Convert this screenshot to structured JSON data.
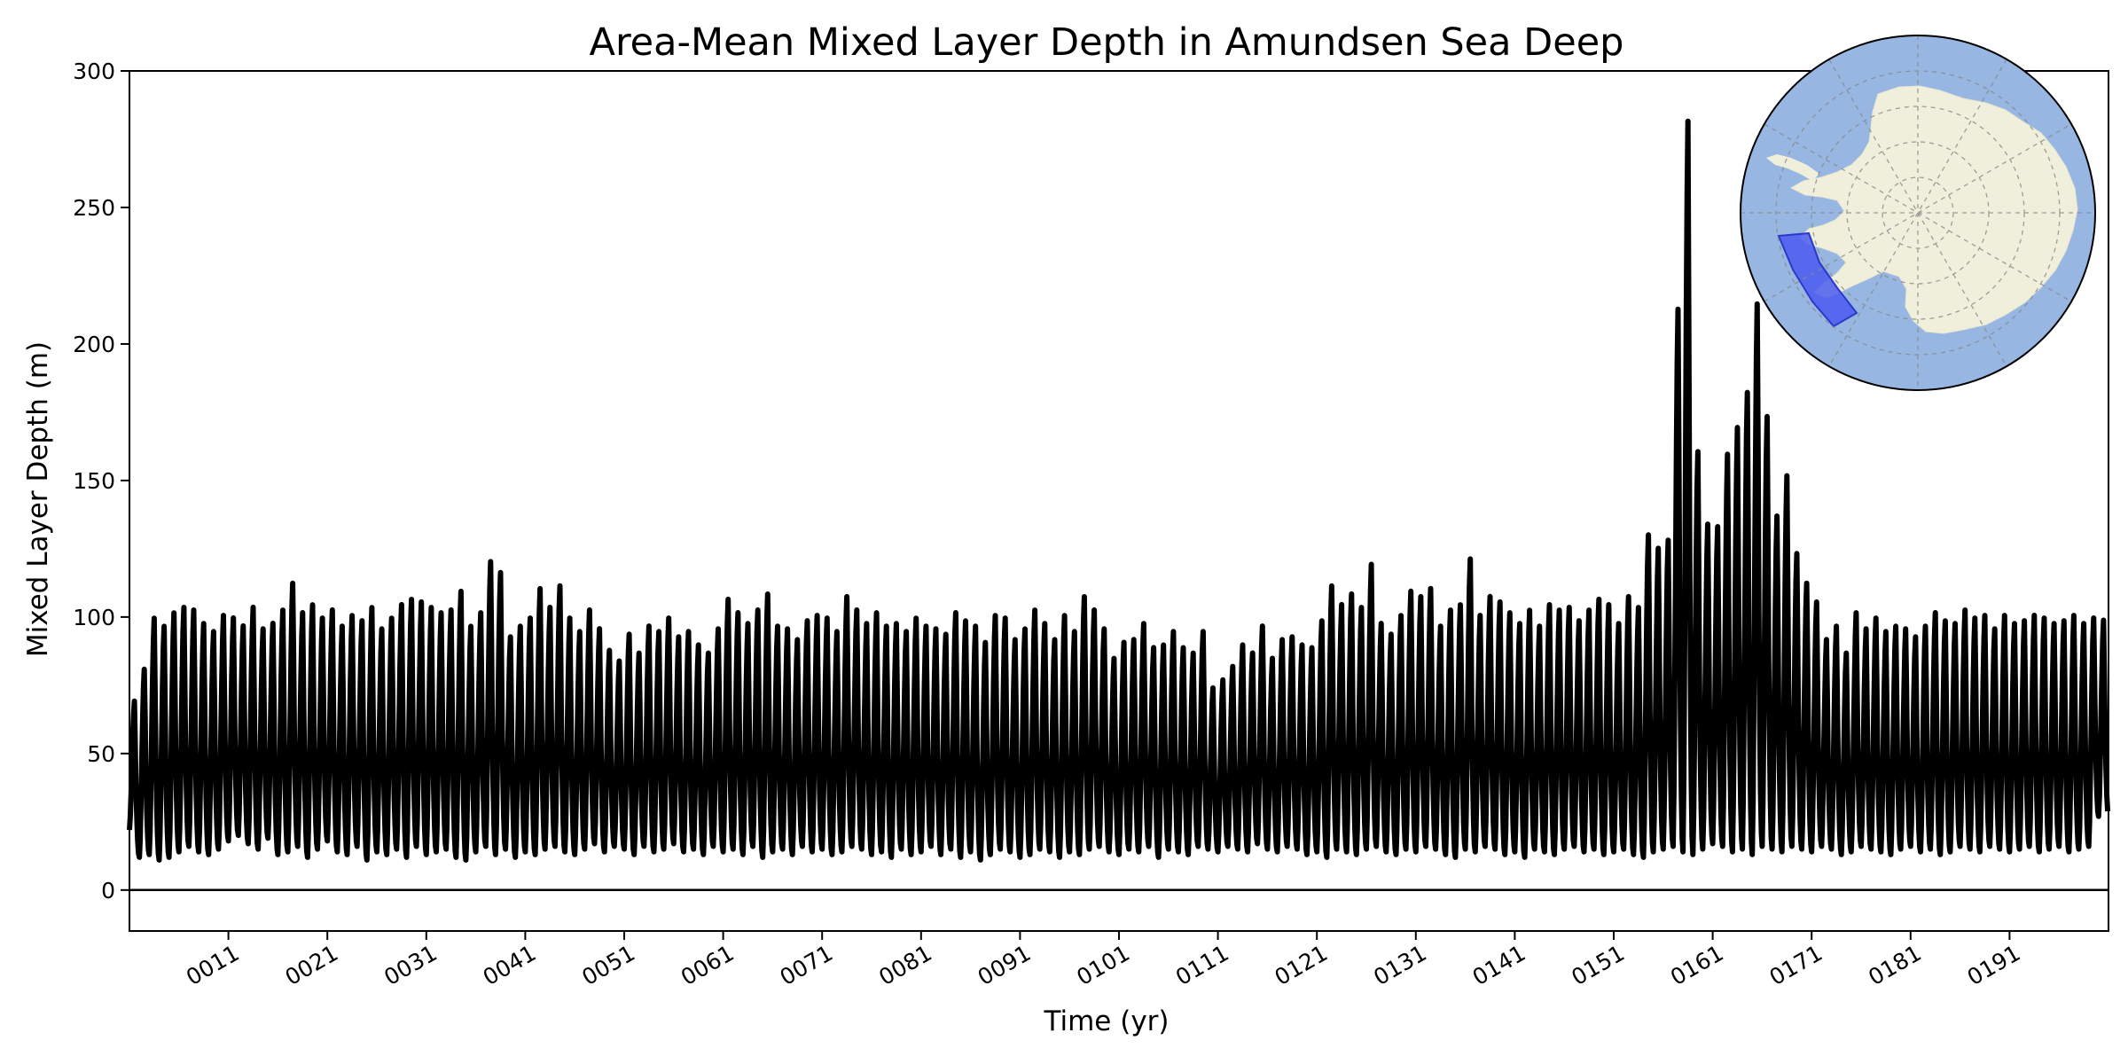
{
  "chart_data": {
    "type": "line",
    "title": "Area-Mean Mixed Layer Depth in Amundsen Sea Deep",
    "xlabel": "Time (yr)",
    "ylabel": "Mixed Layer Depth (m)",
    "xlim": [
      1,
      201
    ],
    "ylim": [
      -15,
      300
    ],
    "grid": false,
    "legend": "none",
    "line_color": "#000000",
    "x_ticks": [
      {
        "x": 11,
        "label": "0011"
      },
      {
        "x": 21,
        "label": "0021"
      },
      {
        "x": 31,
        "label": "0031"
      },
      {
        "x": 41,
        "label": "0041"
      },
      {
        "x": 51,
        "label": "0051"
      },
      {
        "x": 61,
        "label": "0061"
      },
      {
        "x": 71,
        "label": "0071"
      },
      {
        "x": 81,
        "label": "0081"
      },
      {
        "x": 91,
        "label": "0091"
      },
      {
        "x": 101,
        "label": "0101"
      },
      {
        "x": 111,
        "label": "0111"
      },
      {
        "x": 121,
        "label": "0121"
      },
      {
        "x": 131,
        "label": "0131"
      },
      {
        "x": 141,
        "label": "0141"
      },
      {
        "x": 151,
        "label": "0151"
      },
      {
        "x": 161,
        "label": "0161"
      },
      {
        "x": 171,
        "label": "0171"
      },
      {
        "x": 181,
        "label": "0181"
      },
      {
        "x": 191,
        "label": "0191"
      }
    ],
    "y_ticks": [
      {
        "y": 0,
        "label": "0"
      },
      {
        "y": 50,
        "label": "50"
      },
      {
        "y": 100,
        "label": "100"
      },
      {
        "y": 150,
        "label": "150"
      },
      {
        "y": 200,
        "label": "200"
      },
      {
        "y": 250,
        "label": "250"
      },
      {
        "y": 300,
        "label": "300"
      }
    ],
    "reference_line_y": 0,
    "series": [
      {
        "x_start": 1,
        "x_step": 1,
        "annual_max": [
          70,
          82,
          101,
          98,
          103,
          105,
          104,
          99,
          96,
          102,
          101,
          98,
          105,
          97,
          99,
          104,
          114,
          103,
          106,
          101,
          104,
          98,
          102,
          100,
          105,
          97,
          101,
          106,
          108,
          107,
          105,
          103,
          104,
          111,
          98,
          103,
          122,
          118,
          94,
          98,
          101,
          112,
          105,
          113,
          101,
          96,
          104,
          97,
          89,
          85,
          95,
          88,
          98,
          96,
          101,
          94,
          96,
          91,
          88,
          97,
          108,
          103,
          99,
          104,
          110,
          98,
          97,
          93,
          100,
          102,
          101,
          96,
          109,
          104,
          99,
          103,
          98,
          99,
          96,
          101,
          98,
          97,
          95,
          103,
          100,
          98,
          92,
          102,
          101,
          93,
          97,
          104,
          99,
          93,
          102,
          96,
          109,
          104,
          97,
          86,
          92,
          93,
          99,
          90,
          91,
          96,
          90,
          88,
          96,
          75,
          78,
          83,
          91,
          88,
          98,
          86,
          93,
          94,
          91,
          90,
          100,
          113,
          106,
          110,
          105,
          121,
          99,
          95,
          102,
          111,
          109,
          112,
          98,
          104,
          106,
          123,
          102,
          109,
          107,
          103,
          99,
          104,
          98,
          106,
          104,
          105,
          100,
          104,
          108,
          106,
          99,
          109,
          105,
          132,
          127,
          130,
          216,
          286,
          163,
          136,
          135,
          162,
          172,
          185,
          218,
          176,
          139,
          154,
          125,
          114,
          107,
          93,
          98,
          88,
          103,
          97,
          101,
          96,
          98,
          97,
          94,
          98,
          103,
          100,
          99,
          104,
          101,
          102,
          97,
          102,
          99,
          100,
          102,
          101,
          99,
          100,
          102,
          99,
          101,
          100
        ],
        "annual_min": [
          22,
          12,
          13,
          11,
          12,
          14,
          16,
          14,
          13,
          15,
          18,
          20,
          17,
          15,
          19,
          13,
          14,
          16,
          12,
          15,
          18,
          14,
          13,
          16,
          11,
          14,
          13,
          15,
          12,
          16,
          13,
          14,
          15,
          12,
          11,
          14,
          16,
          13,
          15,
          12,
          14,
          13,
          15,
          16,
          14,
          13,
          15,
          17,
          14,
          16,
          15,
          13,
          16,
          14,
          15,
          17,
          14,
          15,
          13,
          16,
          14,
          15,
          13,
          16,
          12,
          14,
          15,
          13,
          16,
          14,
          15,
          13,
          14,
          16,
          15,
          13,
          14,
          12,
          15,
          13,
          14,
          16,
          13,
          15,
          12,
          14,
          11,
          13,
          15,
          14,
          12,
          13,
          15,
          14,
          12,
          14,
          13,
          15,
          16,
          14,
          13,
          15,
          14,
          16,
          12,
          15,
          14,
          13,
          16,
          15,
          14,
          16,
          15,
          14,
          17,
          15,
          14,
          16,
          15,
          13,
          14,
          12,
          15,
          14,
          13,
          15,
          16,
          14,
          13,
          15,
          14,
          16,
          15,
          13,
          12,
          15,
          14,
          16,
          15,
          13,
          14,
          12,
          15,
          14,
          13,
          15,
          16,
          14,
          15,
          13,
          14,
          15,
          13,
          12,
          14,
          15,
          16,
          14,
          13,
          15,
          17,
          16,
          14,
          15,
          13,
          16,
          15,
          14,
          16,
          15,
          14,
          16,
          15,
          13,
          14,
          16,
          15,
          14,
          13,
          15,
          16,
          14,
          15,
          13,
          14,
          16,
          15,
          14,
          16,
          15,
          14,
          15,
          16,
          14,
          15,
          16,
          14,
          15,
          16,
          27
        ]
      }
    ]
  },
  "inset_map": {
    "description_hidden": true,
    "ocean_color": "#97b6e2",
    "land_color": "#efefdb",
    "region_color": "#4a5cf0",
    "graticule_color": "#888888"
  }
}
